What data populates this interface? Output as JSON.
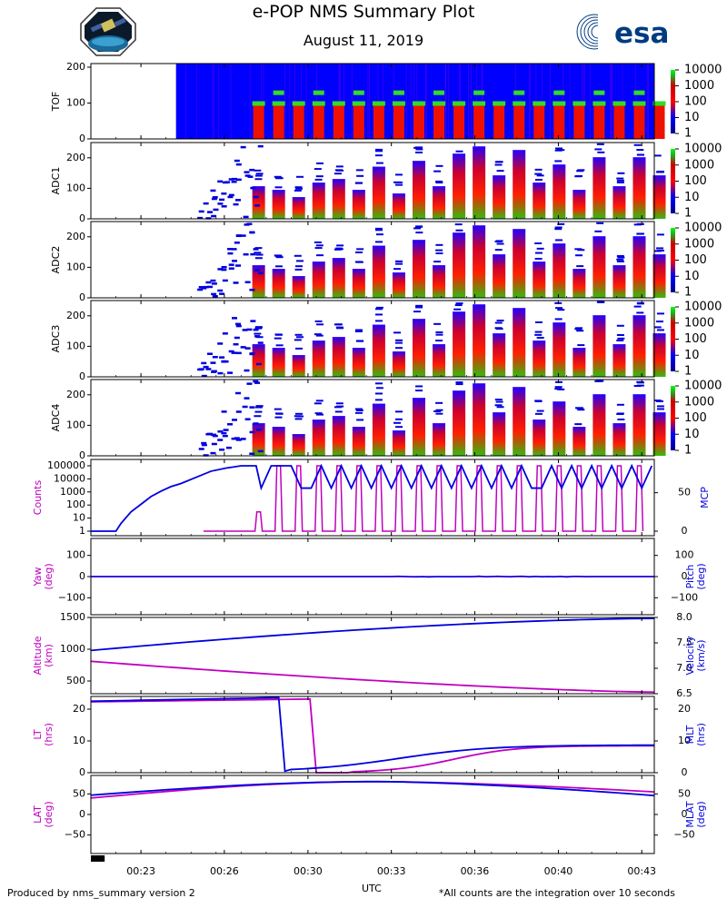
{
  "header": {
    "title": "e-POP NMS Summary Plot",
    "date": "August 11, 2019",
    "esa_logo_text": "esa"
  },
  "footer": {
    "left": "Produced by nms_summary version 2",
    "right": "*All counts are the integration over 10 seconds"
  },
  "colors": {
    "magenta": "#c000c0",
    "blue": "#0000e0",
    "spectro_background": "#0000ff"
  },
  "chart_data": [
    {
      "type": "heatmap",
      "name": "TOF",
      "ylabel": "TOF",
      "ylim": [
        0,
        210
      ],
      "yticks": [
        "200",
        "100",
        "0"
      ],
      "colorbar_ticks": [
        "10000",
        "1000",
        "100",
        "10",
        "1"
      ],
      "data_start_time": "00:24",
      "peak_bands": [
        100,
        130
      ]
    },
    {
      "type": "heatmap",
      "name": "ADC1",
      "ylabel": "ADC1",
      "ylim": [
        0,
        250
      ],
      "yticks": [
        "200",
        "100",
        "0"
      ],
      "colorbar_ticks": [
        "10000",
        "1000",
        "100",
        "10",
        "1"
      ]
    },
    {
      "type": "heatmap",
      "name": "ADC2",
      "ylabel": "ADC2",
      "ylim": [
        0,
        250
      ],
      "yticks": [
        "200",
        "100",
        "0"
      ],
      "colorbar_ticks": [
        "10000",
        "1000",
        "100",
        "10",
        "1"
      ]
    },
    {
      "type": "heatmap",
      "name": "ADC3",
      "ylabel": "ADC3",
      "ylim": [
        0,
        250
      ],
      "yticks": [
        "200",
        "100",
        "0"
      ],
      "colorbar_ticks": [
        "10000",
        "1000",
        "100",
        "10",
        "1"
      ]
    },
    {
      "type": "heatmap",
      "name": "ADC4",
      "ylabel": "ADC4",
      "ylim": [
        0,
        250
      ],
      "yticks": [
        "200",
        "100",
        "0"
      ],
      "colorbar_ticks": [
        "10000",
        "1000",
        "100",
        "10",
        "1"
      ]
    },
    {
      "type": "line",
      "name": "Counts/MCP",
      "ylabel_left": "Counts",
      "ylabel_right": "MCP",
      "yticks_left": [
        "100000",
        "10000",
        "1000",
        "100",
        "10",
        "1"
      ],
      "yticks_right": [
        "50",
        "0"
      ],
      "series": [
        {
          "name": "Counts",
          "color": "magenta",
          "scale": "log",
          "note": "pulsed between 1 and ~1e5 after 00:26"
        },
        {
          "name": "MCP",
          "color": "blue",
          "note": "stepped rise 0 to ~85 then oscillating 55-85"
        }
      ]
    },
    {
      "type": "line",
      "name": "Yaw/Pitch",
      "ylabel_left": "Yaw\n(deg)",
      "ylabel_right": "Pitch\n(deg)",
      "ylim": [
        -180,
        180
      ],
      "yticks": [
        "100",
        "0",
        "−100"
      ],
      "series": [
        {
          "name": "Yaw",
          "color": "magenta",
          "values": [
            0,
            0
          ]
        },
        {
          "name": "Pitch",
          "color": "blue",
          "values": [
            0,
            0
          ]
        }
      ]
    },
    {
      "type": "line",
      "name": "Altitude/Velocity",
      "ylabel_left": "Altitude\n(km)",
      "ylabel_right": "Velocity\n(km/s)",
      "ylim_left": [
        300,
        1500
      ],
      "ylim_right": [
        6.5,
        8.0
      ],
      "yticks_left": [
        "1500",
        "1000",
        "500"
      ],
      "yticks_right": [
        "8.0",
        "7.5",
        "7.0",
        "6.5"
      ],
      "series": [
        {
          "name": "Altitude",
          "color": "magenta",
          "x": [
            0,
            22.5
          ],
          "values": [
            810,
            325
          ]
        },
        {
          "name": "Velocity",
          "color": "blue",
          "x": [
            0,
            22.5
          ],
          "values": [
            7.35,
            7.98
          ]
        }
      ]
    },
    {
      "type": "line",
      "name": "LT/MLT",
      "ylabel_left": "LT\n(hrs)",
      "ylabel_right": "MLT\n(hrs)",
      "ylim": [
        0,
        24
      ],
      "yticks": [
        "20",
        "10",
        "0"
      ],
      "series": [
        {
          "name": "LT",
          "color": "magenta"
        },
        {
          "name": "MLT",
          "color": "blue"
        }
      ]
    },
    {
      "type": "line",
      "name": "LAT/MLAT",
      "ylabel_left": "LAT\n(deg)",
      "ylabel_right": "MLAT\n(deg)",
      "ylim": [
        -95,
        95
      ],
      "yticks": [
        "50",
        "0",
        "−50"
      ],
      "series": [
        {
          "name": "LAT",
          "color": "magenta",
          "x": [
            0,
            11.5,
            22.5
          ],
          "values": [
            40,
            80,
            55
          ]
        },
        {
          "name": "MLAT",
          "color": "blue",
          "x": [
            0,
            11.5,
            22.5
          ],
          "values": [
            47,
            80,
            46
          ]
        }
      ]
    }
  ],
  "time_axis": {
    "label": "UTC",
    "xlim_minutes": [
      0,
      22.5
    ],
    "ticks": [
      {
        "label": "00:23",
        "minute": 2
      },
      {
        "label": "00:26",
        "minute": 5.33
      },
      {
        "label": "00:30",
        "minute": 8.67
      },
      {
        "label": "00:33",
        "minute": 12
      },
      {
        "label": "00:36",
        "minute": 15.33
      },
      {
        "label": "00:40",
        "minute": 18.67
      },
      {
        "label": "00:43",
        "minute": 22
      }
    ],
    "eclipse_bar_minutes": [
      0,
      0.55
    ]
  }
}
